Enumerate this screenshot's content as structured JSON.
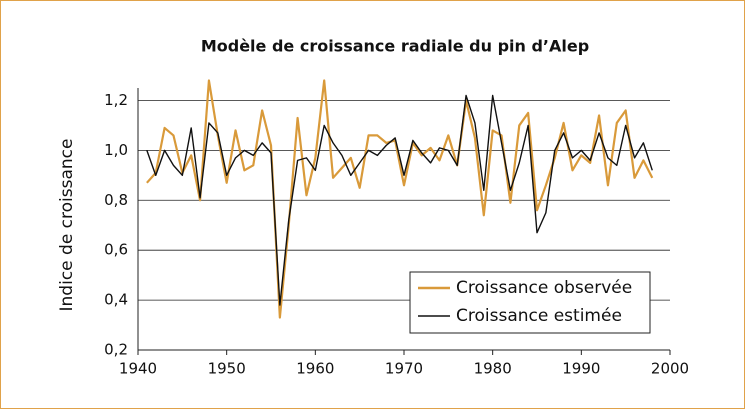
{
  "chart_data": {
    "type": "line",
    "title": "Modèle de croissance radiale du pin d’Alep",
    "y_label": "Indice de croissance",
    "x": [
      1941,
      1942,
      1943,
      1944,
      1945,
      1946,
      1947,
      1948,
      1949,
      1950,
      1951,
      1952,
      1953,
      1954,
      1955,
      1956,
      1957,
      1958,
      1959,
      1960,
      1961,
      1962,
      1963,
      1964,
      1965,
      1966,
      1967,
      1968,
      1969,
      1970,
      1971,
      1972,
      1973,
      1974,
      1975,
      1976,
      1977,
      1978,
      1979,
      1980,
      1981,
      1982,
      1983,
      1984,
      1985,
      1986,
      1987,
      1988,
      1989,
      1990,
      1991,
      1992,
      1993,
      1994,
      1995,
      1996,
      1997,
      1998
    ],
    "series": [
      {
        "name": "Croissance observée",
        "color": "#d99a3a",
        "values": [
          0.87,
          0.91,
          1.09,
          1.06,
          0.91,
          0.98,
          0.8,
          1.28,
          1.06,
          0.87,
          1.08,
          0.92,
          0.94,
          1.16,
          1.02,
          0.33,
          0.7,
          1.13,
          0.82,
          0.97,
          1.28,
          0.89,
          0.93,
          0.97,
          0.85,
          1.06,
          1.06,
          1.03,
          1.04,
          0.86,
          1.03,
          0.98,
          1.01,
          0.96,
          1.06,
          0.94,
          1.2,
          1.05,
          0.74,
          1.08,
          1.06,
          0.79,
          1.1,
          1.15,
          0.76,
          0.86,
          0.97,
          1.11,
          0.92,
          0.98,
          0.95,
          1.14,
          0.86,
          1.11,
          1.16,
          0.89,
          0.96,
          0.89
        ]
      },
      {
        "name": "Croissance estimée",
        "color": "#111111",
        "values": [
          1.0,
          0.9,
          1.0,
          0.94,
          0.9,
          1.09,
          0.81,
          1.11,
          1.07,
          0.9,
          0.97,
          1.0,
          0.98,
          1.03,
          0.99,
          0.38,
          0.72,
          0.96,
          0.97,
          0.92,
          1.1,
          1.03,
          0.98,
          0.9,
          0.95,
          1.0,
          0.98,
          1.02,
          1.05,
          0.9,
          1.04,
          0.99,
          0.95,
          1.01,
          1.0,
          0.94,
          1.22,
          1.11,
          0.84,
          1.22,
          1.03,
          0.84,
          0.95,
          1.1,
          0.67,
          0.75,
          1.0,
          1.07,
          0.97,
          1.0,
          0.96,
          1.07,
          0.97,
          0.94,
          1.1,
          0.97,
          1.03,
          0.92
        ]
      }
    ],
    "xlim": [
      1940,
      2000
    ],
    "xticks": [
      1940,
      1950,
      1960,
      1970,
      1980,
      1990,
      2000
    ],
    "ylim": [
      0.2,
      1.25
    ],
    "yticks": [
      {
        "value": 0.2,
        "label": "0,2"
      },
      {
        "value": 0.4,
        "label": "0,4"
      },
      {
        "value": 0.6,
        "label": "0,6"
      },
      {
        "value": 0.8,
        "label": "0,8"
      },
      {
        "value": 1.0,
        "label": "1,0"
      },
      {
        "value": 1.2,
        "label": "1,2"
      }
    ],
    "grid": true,
    "legend": "lower right"
  }
}
